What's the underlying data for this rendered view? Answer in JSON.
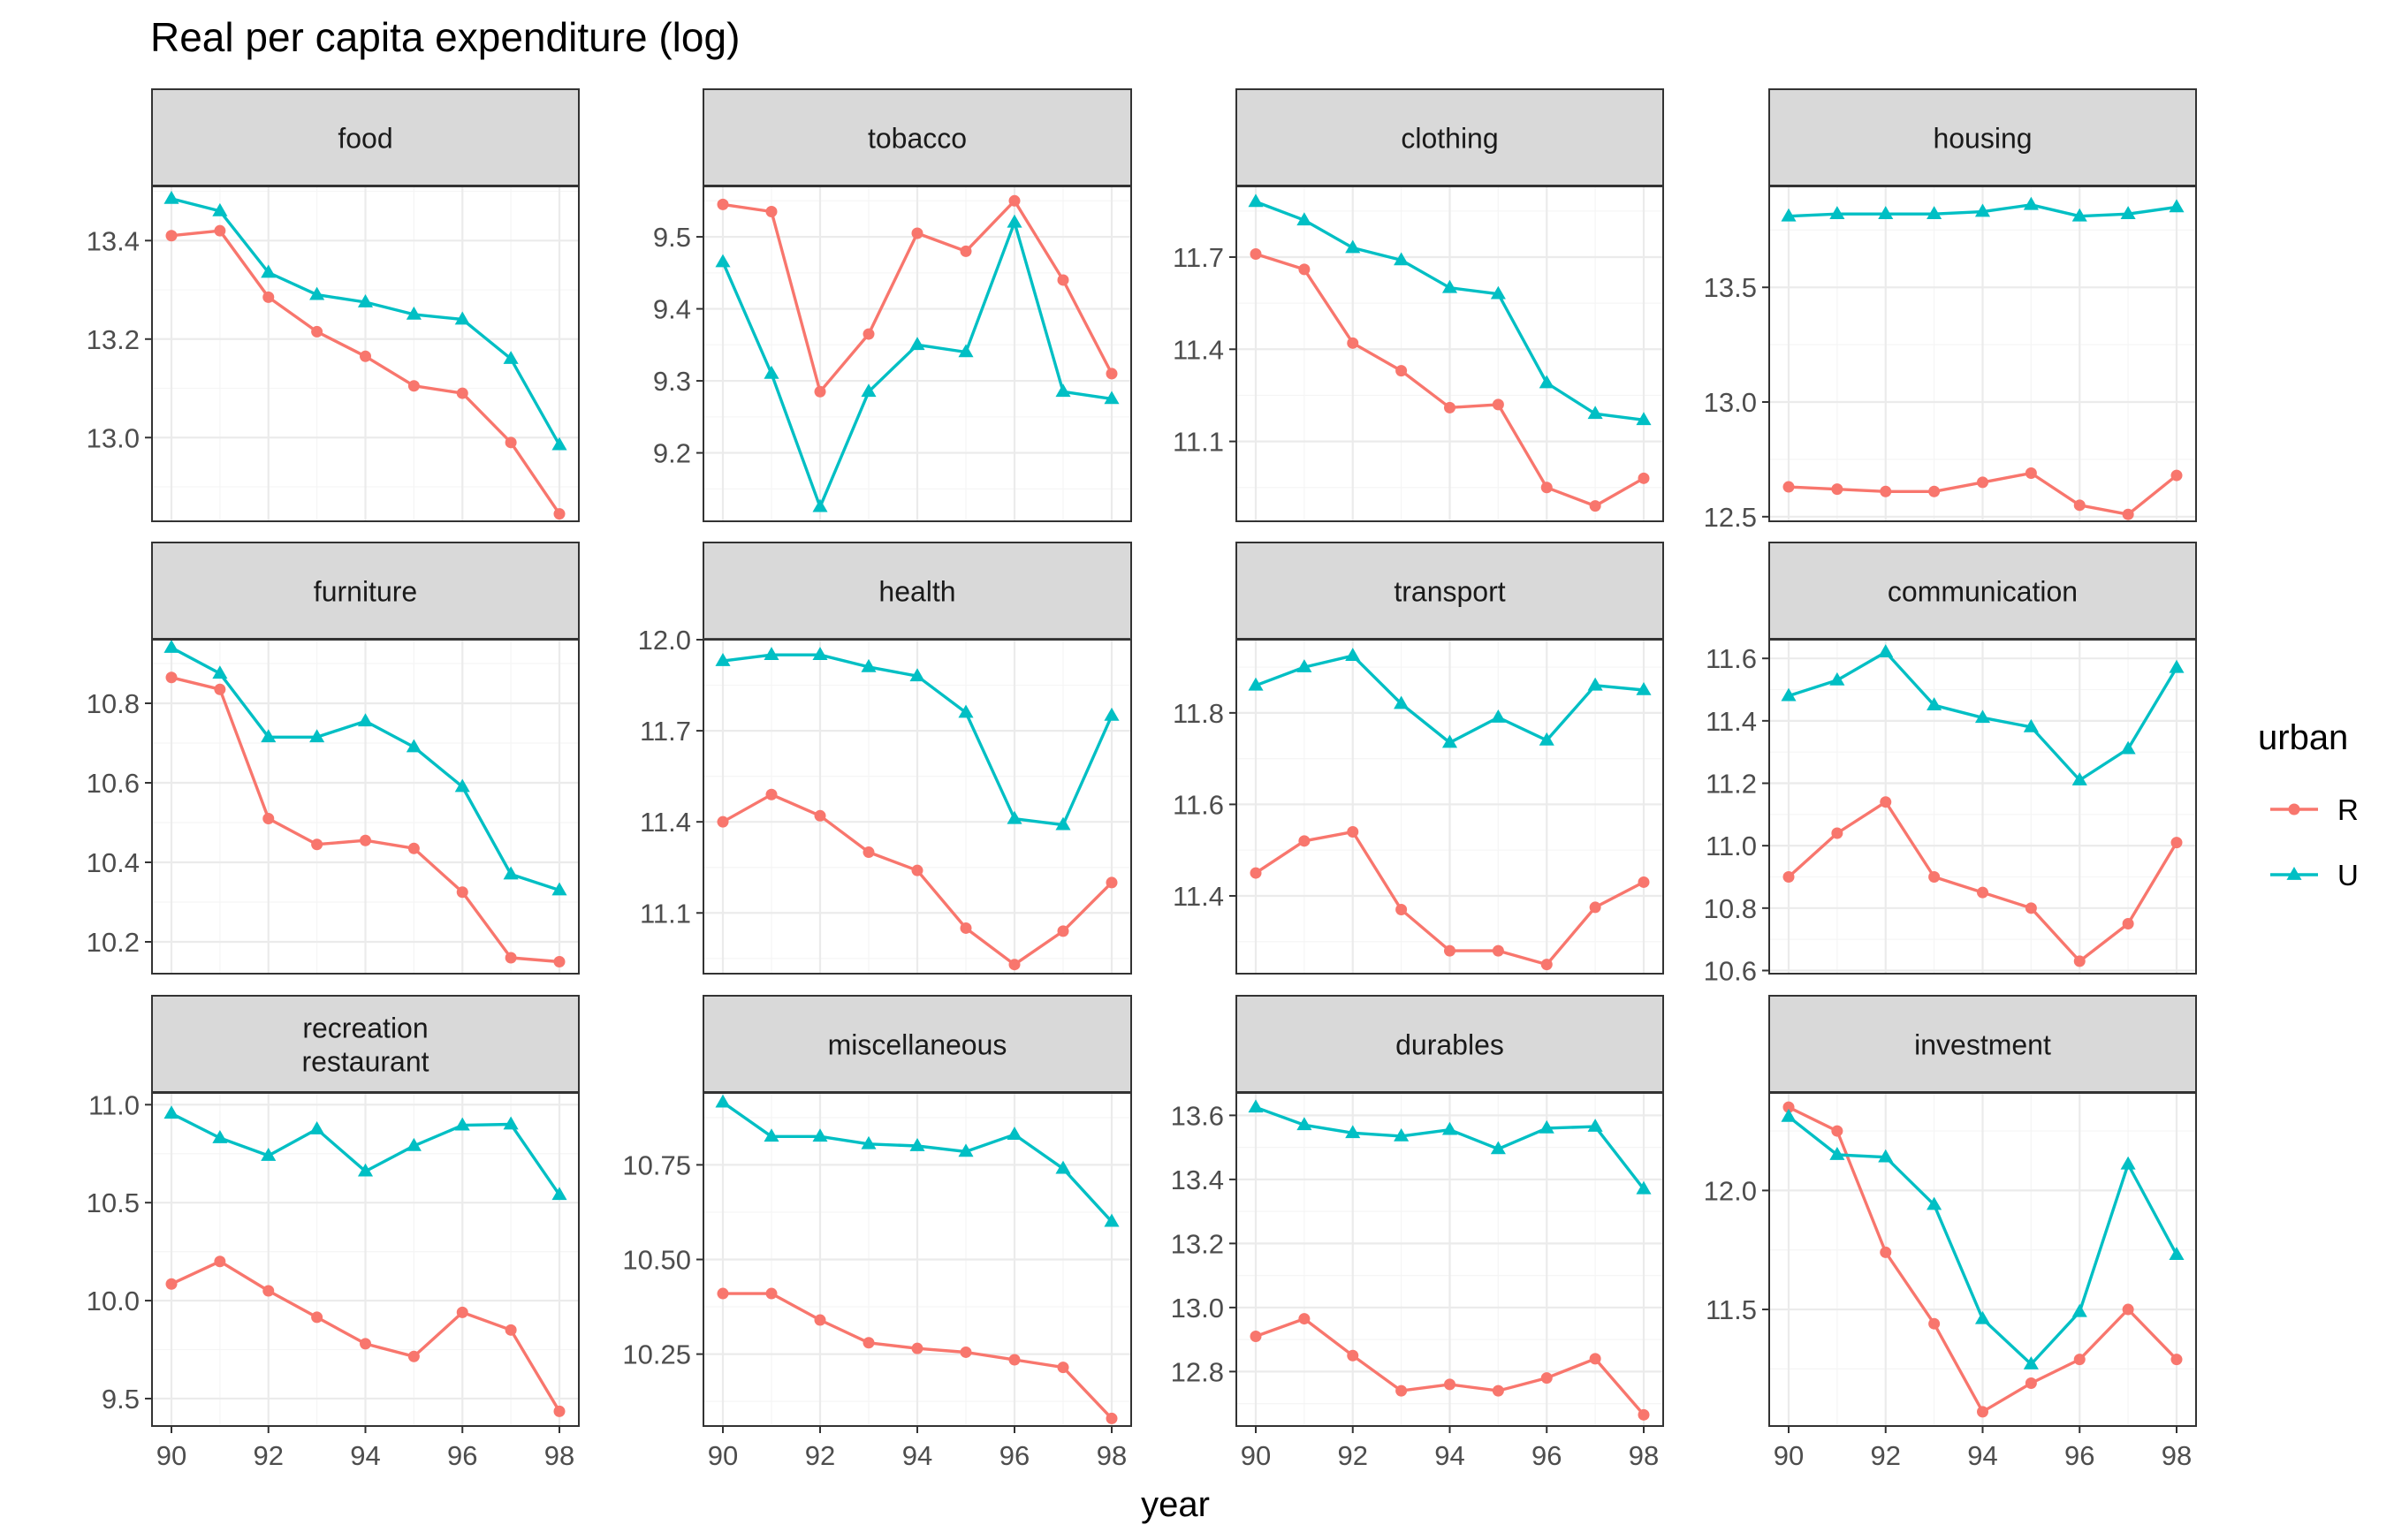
{
  "title": "Real per capita expenditure (log)",
  "colors": {
    "R": "#F8766D",
    "U": "#00BFC4",
    "strip_bg": "#D9D9D9",
    "panel_border": "#333333",
    "grid_major": "#EBEBEB",
    "grid_minor": "#F5F5F5"
  },
  "chart_data": {
    "type": "line",
    "facet_wrap": "category",
    "xlabel": "year",
    "ylabel": "",
    "x": [
      90,
      91,
      92,
      93,
      94,
      95,
      96,
      97,
      98
    ],
    "x_ticks": [
      90,
      92,
      94,
      96,
      98
    ],
    "grid": true,
    "legend": {
      "title": "urban",
      "position": "right",
      "entries": [
        {
          "name": "R",
          "marker": "circle",
          "color": "#F8766D"
        },
        {
          "name": "U",
          "marker": "triangle",
          "color": "#00BFC4"
        }
      ]
    },
    "panels": [
      {
        "label": [
          "food"
        ],
        "ylim": [
          12.83,
          13.51
        ],
        "y_ticks": [
          13.0,
          13.2,
          13.4
        ],
        "y_tick_labels": [
          "13.0",
          "13.2",
          "13.4"
        ],
        "series": [
          {
            "name": "R",
            "values": [
              13.41,
              13.42,
              13.285,
              13.215,
              13.165,
              13.105,
              13.09,
              12.99,
              12.845
            ]
          },
          {
            "name": "U",
            "values": [
              13.485,
              13.46,
              13.335,
              13.29,
              13.275,
              13.25,
              13.24,
              13.16,
              12.985
            ]
          }
        ]
      },
      {
        "label": [
          "tobacco"
        ],
        "ylim": [
          9.105,
          9.57
        ],
        "y_ticks": [
          9.2,
          9.3,
          9.4,
          9.5
        ],
        "y_tick_labels": [
          "9.2",
          "9.3",
          "9.4",
          "9.5"
        ],
        "series": [
          {
            "name": "R",
            "values": [
              9.545,
              9.535,
              9.285,
              9.365,
              9.505,
              9.48,
              9.55,
              9.44,
              9.31
            ]
          },
          {
            "name": "U",
            "values": [
              9.465,
              9.31,
              9.125,
              9.285,
              9.35,
              9.34,
              9.52,
              9.285,
              9.275
            ]
          }
        ]
      },
      {
        "label": [
          "clothing"
        ],
        "ylim": [
          10.84,
          11.93
        ],
        "y_ticks": [
          11.1,
          11.4,
          11.7
        ],
        "y_tick_labels": [
          "11.1",
          "11.4",
          "11.7"
        ],
        "series": [
          {
            "name": "R",
            "values": [
              11.71,
              11.66,
              11.42,
              11.33,
              11.21,
              11.22,
              10.95,
              10.89,
              10.98
            ]
          },
          {
            "name": "U",
            "values": [
              11.88,
              11.82,
              11.73,
              11.69,
              11.6,
              11.58,
              11.29,
              11.19,
              11.17
            ]
          }
        ]
      },
      {
        "label": [
          "housing"
        ],
        "ylim": [
          12.48,
          13.94
        ],
        "y_ticks": [
          12.5,
          13.0,
          13.5
        ],
        "y_tick_labels": [
          "12.5",
          "13.0",
          "13.5"
        ],
        "series": [
          {
            "name": "R",
            "values": [
              12.63,
              12.62,
              12.61,
              12.61,
              12.65,
              12.69,
              12.55,
              12.51,
              12.68
            ]
          },
          {
            "name": "U",
            "values": [
              13.81,
              13.82,
              13.82,
              13.82,
              13.83,
              13.86,
              13.81,
              13.82,
              13.85
            ]
          }
        ]
      },
      {
        "label": [
          "furniture"
        ],
        "ylim": [
          10.12,
          10.96
        ],
        "y_ticks": [
          10.2,
          10.4,
          10.6,
          10.8
        ],
        "y_tick_labels": [
          "10.2",
          "10.4",
          "10.6",
          "10.8"
        ],
        "series": [
          {
            "name": "R",
            "values": [
              10.865,
              10.835,
              10.51,
              10.445,
              10.455,
              10.435,
              10.325,
              10.16,
              10.15
            ]
          },
          {
            "name": "U",
            "values": [
              10.94,
              10.875,
              10.715,
              10.715,
              10.755,
              10.69,
              10.59,
              10.37,
              10.33
            ]
          }
        ]
      },
      {
        "label": [
          "health"
        ],
        "ylim": [
          10.9,
          12.0
        ],
        "y_ticks": [
          11.1,
          11.4,
          11.7,
          12.0
        ],
        "y_tick_labels": [
          "11.1",
          "11.4",
          "11.7",
          "12.0"
        ],
        "series": [
          {
            "name": "R",
            "values": [
              11.4,
              11.49,
              11.42,
              11.3,
              11.24,
              11.05,
              10.93,
              11.04,
              11.2
            ]
          },
          {
            "name": "U",
            "values": [
              11.93,
              11.95,
              11.95,
              11.91,
              11.88,
              11.76,
              11.41,
              11.39,
              11.75
            ]
          }
        ]
      },
      {
        "label": [
          "transport"
        ],
        "ylim": [
          11.23,
          11.96
        ],
        "y_ticks": [
          11.4,
          11.6,
          11.8
        ],
        "y_tick_labels": [
          "11.4",
          "11.6",
          "11.8"
        ],
        "series": [
          {
            "name": "R",
            "values": [
              11.45,
              11.52,
              11.54,
              11.37,
              11.28,
              11.28,
              11.25,
              11.375,
              11.43
            ]
          },
          {
            "name": "U",
            "values": [
              11.86,
              11.9,
              11.925,
              11.82,
              11.735,
              11.79,
              11.74,
              11.86,
              11.85
            ]
          }
        ]
      },
      {
        "label": [
          "communication"
        ],
        "ylim": [
          10.59,
          11.66
        ],
        "y_ticks": [
          10.6,
          10.8,
          11.0,
          11.2,
          11.4,
          11.6
        ],
        "y_tick_labels": [
          "10.6",
          "10.8",
          "11.0",
          "11.2",
          "11.4",
          "11.6"
        ],
        "series": [
          {
            "name": "R",
            "values": [
              10.9,
              11.04,
              11.14,
              10.9,
              10.85,
              10.8,
              10.63,
              10.75,
              11.01
            ]
          },
          {
            "name": "U",
            "values": [
              11.48,
              11.53,
              11.62,
              11.45,
              11.41,
              11.38,
              11.21,
              11.31,
              11.57
            ]
          }
        ]
      },
      {
        "label": [
          "recreation",
          "restaurant"
        ],
        "ylim": [
          9.36,
          11.06
        ],
        "y_ticks": [
          9.5,
          10.0,
          10.5,
          11.0
        ],
        "y_tick_labels": [
          "9.5",
          "10.0",
          "10.5",
          "11.0"
        ],
        "series": [
          {
            "name": "R",
            "values": [
              10.085,
              10.2,
              10.05,
              9.915,
              9.78,
              9.715,
              9.94,
              9.85,
              9.435
            ]
          },
          {
            "name": "U",
            "values": [
              10.955,
              10.83,
              10.74,
              10.875,
              10.66,
              10.79,
              10.895,
              10.9,
              10.54
            ]
          }
        ]
      },
      {
        "label": [
          "miscellaneous"
        ],
        "ylim": [
          10.06,
          10.94
        ],
        "y_ticks": [
          10.25,
          10.5,
          10.75
        ],
        "y_tick_labels": [
          "10.25",
          "10.50",
          "10.75"
        ],
        "series": [
          {
            "name": "R",
            "values": [
              10.41,
              10.41,
              10.34,
              10.28,
              10.265,
              10.255,
              10.235,
              10.215,
              10.08
            ]
          },
          {
            "name": "U",
            "values": [
              10.915,
              10.825,
              10.825,
              10.805,
              10.8,
              10.785,
              10.83,
              10.74,
              10.6
            ]
          }
        ]
      },
      {
        "label": [
          "durables"
        ],
        "ylim": [
          12.63,
          13.67
        ],
        "y_ticks": [
          12.8,
          13.0,
          13.2,
          13.4,
          13.6
        ],
        "y_tick_labels": [
          "12.8",
          "13.0",
          "13.2",
          "13.4",
          "13.6"
        ],
        "series": [
          {
            "name": "R",
            "values": [
              12.91,
              12.965,
              12.85,
              12.74,
              12.76,
              12.74,
              12.78,
              12.84,
              12.665
            ]
          },
          {
            "name": "U",
            "values": [
              13.625,
              13.57,
              13.545,
              13.535,
              13.555,
              13.495,
              13.56,
              13.565,
              13.37
            ]
          }
        ]
      },
      {
        "label": [
          "investment"
        ],
        "ylim": [
          11.01,
          12.41
        ],
        "y_ticks": [
          11.5,
          12.0
        ],
        "y_tick_labels": [
          "11.5",
          "12.0"
        ],
        "series": [
          {
            "name": "R",
            "values": [
              12.35,
              12.25,
              11.74,
              11.44,
              11.07,
              11.19,
              11.29,
              11.5,
              11.29
            ]
          },
          {
            "name": "U",
            "values": [
              12.31,
              12.15,
              12.14,
              11.94,
              11.46,
              11.27,
              11.49,
              12.11,
              11.73
            ]
          }
        ]
      }
    ]
  }
}
